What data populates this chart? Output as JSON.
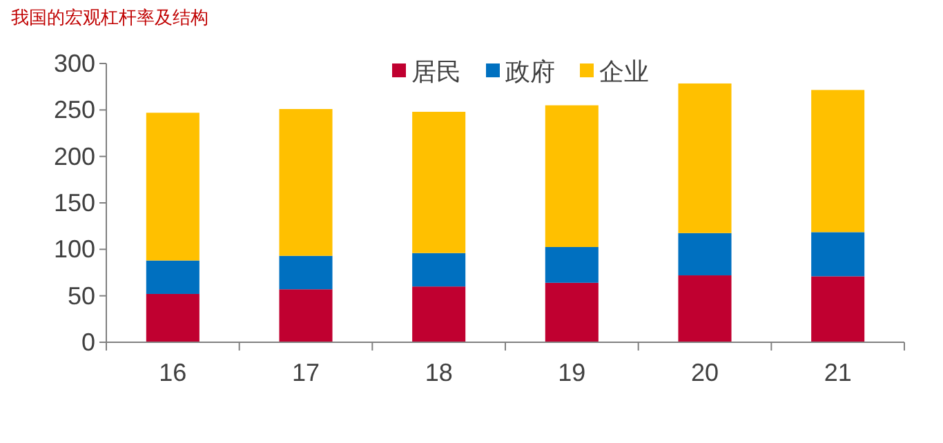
{
  "chart_data": {
    "type": "bar",
    "title": "我国的宏观杠杆率及结构",
    "stacked": true,
    "categories": [
      "16",
      "17",
      "18",
      "19",
      "20",
      "21"
    ],
    "series": [
      {
        "name": "居民",
        "color": "#c00030",
        "values": [
          52,
          57,
          60,
          64,
          72,
          71
        ]
      },
      {
        "name": "政府",
        "color": "#0070c0",
        "values": [
          36,
          36,
          36,
          38.5,
          45.5,
          47.5
        ]
      },
      {
        "name": "企业",
        "color": "#ffc000",
        "values": [
          159,
          158,
          152,
          152.5,
          161,
          153
        ]
      }
    ],
    "ylim": [
      0,
      300
    ],
    "yticks": [
      0,
      50,
      100,
      150,
      200,
      250,
      300
    ],
    "grid": false,
    "legend": "top"
  }
}
